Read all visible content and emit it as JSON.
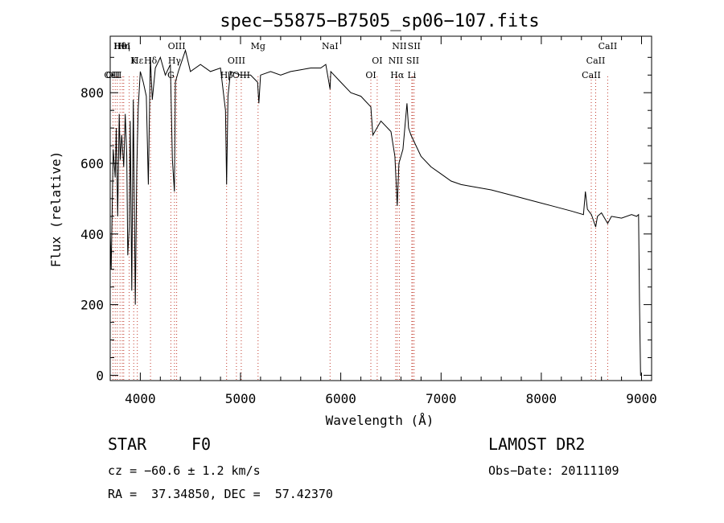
{
  "chart_data": {
    "type": "line",
    "title": "spec−55875−B7505_sp06−107.fits",
    "xlabel": "Wavelength (Å)",
    "ylabel": "Flux (relative)",
    "xlim": [
      3700,
      9100
    ],
    "ylim": [
      -15,
      960
    ],
    "xticks": [
      4000,
      5000,
      6000,
      7000,
      8000,
      9000
    ],
    "yticks": [
      0,
      200,
      400,
      600,
      800
    ],
    "grid": false,
    "series": [
      {
        "x": [
          3700,
          3710,
          3730,
          3750,
          3760,
          3775,
          3790,
          3800,
          3815,
          3835,
          3850,
          3865,
          3875,
          3890,
          3900,
          3915,
          3930,
          3950,
          3965,
          3970,
          3980,
          4000,
          4030,
          4060,
          4080,
          4100,
          4120,
          4150,
          4200,
          4250,
          4300,
          4320,
          4340,
          4350,
          4380,
          4450,
          4500,
          4600,
          4700,
          4800,
          4850,
          4861,
          4875,
          4900,
          5000,
          5100,
          5170,
          5183,
          5200,
          5300,
          5400,
          5500,
          5600,
          5700,
          5800,
          5850,
          5893,
          5900,
          6000,
          6100,
          6200,
          6300,
          6320,
          6400,
          6500,
          6540,
          6563,
          6580,
          6620,
          6660,
          6676,
          6700,
          6800,
          6900,
          7000,
          7100,
          7200,
          7300,
          7500,
          7700,
          7900,
          8100,
          8300,
          8420,
          8440,
          8460,
          8500,
          8542,
          8560,
          8600,
          8662,
          8700,
          8800,
          8900,
          8950,
          8970,
          8980,
          8990,
          9000
        ],
        "values": [
          410,
          300,
          640,
          560,
          700,
          450,
          740,
          610,
          680,
          590,
          740,
          620,
          340,
          420,
          720,
          240,
          780,
          200,
          580,
          650,
          760,
          860,
          830,
          790,
          540,
          900,
          780,
          870,
          900,
          850,
          880,
          610,
          520,
          830,
          860,
          920,
          860,
          880,
          860,
          870,
          750,
          540,
          790,
          860,
          850,
          850,
          830,
          770,
          850,
          860,
          850,
          860,
          865,
          870,
          870,
          880,
          810,
          860,
          830,
          800,
          790,
          760,
          680,
          720,
          690,
          620,
          480,
          600,
          640,
          770,
          700,
          680,
          620,
          590,
          570,
          550,
          540,
          535,
          525,
          510,
          495,
          480,
          465,
          455,
          520,
          470,
          455,
          420,
          450,
          460,
          430,
          450,
          445,
          455,
          450,
          455,
          200,
          0,
          0
        ]
      }
    ],
    "line_labels": [
      {
        "text": "Hθ",
        "x": 3798
      },
      {
        "text": "K",
        "x": 3934
      },
      {
        "text": "OII",
        "x": 3727
      },
      {
        "text": "HeI",
        "x": 3820
      },
      {
        "text": "Hδ",
        "x": 4102
      },
      {
        "text": "OIII",
        "x": 3727
      },
      {
        "text": "Hη",
        "x": 3835
      },
      {
        "text": "Hε",
        "x": 3970
      },
      {
        "text": "G",
        "x": 4305
      },
      {
        "text": "OIII",
        "x": 4363
      },
      {
        "text": "Hγ",
        "x": 4341
      },
      {
        "text": "Hβ",
        "x": 4861
      },
      {
        "text": "Mg",
        "x": 5175
      },
      {
        "text": "OIII",
        "x": 4959
      },
      {
        "text": "OIII",
        "x": 5007
      },
      {
        "text": "NaI",
        "x": 5893
      },
      {
        "text": "OI",
        "x": 6363
      },
      {
        "text": "OI",
        "x": 6300
      },
      {
        "text": "NII",
        "x": 6584
      },
      {
        "text": "SII",
        "x": 6717
      },
      {
        "text": "Hα",
        "x": 6563
      },
      {
        "text": "SII",
        "x": 6731
      },
      {
        "text": "NII",
        "x": 6548
      },
      {
        "text": "Li",
        "x": 6708
      },
      {
        "text": "CaII",
        "x": 8662
      },
      {
        "text": "CaII",
        "x": 8542
      },
      {
        "text": "CaII",
        "x": 8498
      }
    ],
    "line_markers": [
      3727,
      3750,
      3771,
      3798,
      3820,
      3835,
      3889,
      3934,
      3970,
      4102,
      4305,
      4341,
      4363,
      4861,
      4959,
      5007,
      5175,
      5893,
      6300,
      6363,
      6548,
      6563,
      6584,
      6708,
      6717,
      6731,
      8498,
      8542,
      8662
    ]
  },
  "info": {
    "object_type": "STAR",
    "subclass": "F0",
    "survey": "LAMOST DR2",
    "redshift": "cz = −60.6 ± 1.2 km/s",
    "obs_date": "Obs−Date: 20111109",
    "coords": "RA =  37.34850, DEC =  57.42370"
  }
}
